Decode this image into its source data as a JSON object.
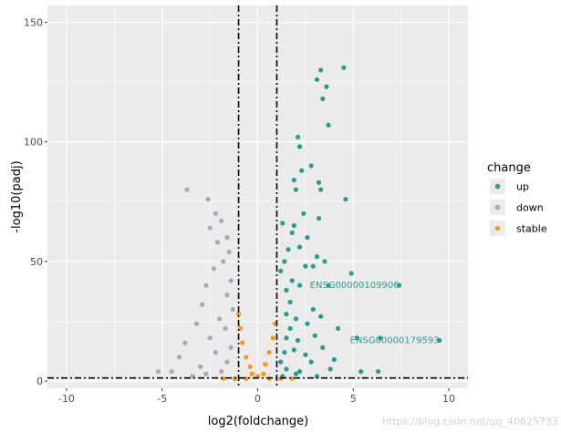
{
  "chart_data": {
    "type": "scatter",
    "title": "",
    "xlabel": "log2(foldchange)",
    "ylabel": "-log10(padj)",
    "xlim": [
      -11,
      11
    ],
    "ylim": [
      -3,
      157
    ],
    "x_ticks": [
      -10,
      -5,
      0,
      5,
      10
    ],
    "y_ticks": [
      0,
      50,
      100,
      150
    ],
    "grid": true,
    "thresholds": {
      "vlines": [
        -1,
        1
      ],
      "hline": 1.3
    },
    "legend": {
      "title": "change",
      "position": "right",
      "entries": [
        {
          "label": "up",
          "color": "#2A9D8F"
        },
        {
          "label": "down",
          "color": "#A4AABB"
        },
        {
          "label": "stable",
          "color": "#F59A23"
        }
      ]
    },
    "series": [
      {
        "name": "up",
        "color": "#2A9D8F",
        "points": [
          [
            4.5,
            131
          ],
          [
            3.3,
            130
          ],
          [
            3.1,
            126
          ],
          [
            3.6,
            123
          ],
          [
            3.4,
            118
          ],
          [
            3.7,
            107
          ],
          [
            2.1,
            102
          ],
          [
            2.2,
            98
          ],
          [
            2.8,
            90
          ],
          [
            2.3,
            88
          ],
          [
            1.9,
            84
          ],
          [
            3.2,
            83
          ],
          [
            2.0,
            80
          ],
          [
            3.3,
            80
          ],
          [
            4.6,
            76
          ],
          [
            2.4,
            70
          ],
          [
            1.3,
            66
          ],
          [
            1.9,
            65
          ],
          [
            3.2,
            68
          ],
          [
            1.8,
            62
          ],
          [
            2.6,
            60
          ],
          [
            2.2,
            56
          ],
          [
            3.1,
            52
          ],
          [
            1.6,
            55
          ],
          [
            1.4,
            50
          ],
          [
            3.5,
            50
          ],
          [
            1.2,
            46
          ],
          [
            2.5,
            48
          ],
          [
            4.9,
            45
          ],
          [
            2.9,
            48
          ],
          [
            1.8,
            42
          ],
          [
            1.5,
            38
          ],
          [
            2.2,
            40
          ],
          [
            3.7,
            40
          ],
          [
            7.4,
            40
          ],
          [
            1.7,
            33
          ],
          [
            2.9,
            30
          ],
          [
            1.5,
            28
          ],
          [
            2.0,
            26
          ],
          [
            3.3,
            27
          ],
          [
            1.7,
            22
          ],
          [
            2.6,
            24
          ],
          [
            4.2,
            22
          ],
          [
            1.5,
            18
          ],
          [
            2.1,
            17
          ],
          [
            3.0,
            19
          ],
          [
            5.2,
            18
          ],
          [
            6.4,
            18
          ],
          [
            9.5,
            17
          ],
          [
            1.4,
            12
          ],
          [
            1.9,
            13
          ],
          [
            2.5,
            11
          ],
          [
            3.4,
            14
          ],
          [
            1.2,
            8
          ],
          [
            2.8,
            8
          ],
          [
            4.0,
            9
          ],
          [
            1.5,
            5
          ],
          [
            2.2,
            4
          ],
          [
            3.8,
            5
          ],
          [
            5.4,
            4
          ],
          [
            6.3,
            4
          ],
          [
            1.3,
            2
          ],
          [
            2.0,
            3
          ],
          [
            3.1,
            2
          ]
        ]
      },
      {
        "name": "down",
        "color": "#A4AABB",
        "points": [
          [
            -3.7,
            80
          ],
          [
            -2.6,
            76
          ],
          [
            -2.2,
            70
          ],
          [
            -1.9,
            67
          ],
          [
            -2.5,
            64
          ],
          [
            -1.6,
            60
          ],
          [
            -2.1,
            58
          ],
          [
            -1.5,
            54
          ],
          [
            -1.8,
            50
          ],
          [
            -2.3,
            47
          ],
          [
            -1.4,
            42
          ],
          [
            -2.7,
            40
          ],
          [
            -1.6,
            36
          ],
          [
            -2.9,
            32
          ],
          [
            -1.3,
            30
          ],
          [
            -2.0,
            26
          ],
          [
            -3.2,
            24
          ],
          [
            -1.7,
            22
          ],
          [
            -2.5,
            18
          ],
          [
            -3.8,
            16
          ],
          [
            -1.4,
            14
          ],
          [
            -2.2,
            12
          ],
          [
            -4.1,
            10
          ],
          [
            -1.6,
            8
          ],
          [
            -3.0,
            6
          ],
          [
            -4.5,
            4
          ],
          [
            -1.9,
            4
          ],
          [
            -5.2,
            4
          ],
          [
            -2.7,
            3
          ],
          [
            -3.4,
            2
          ]
        ]
      },
      {
        "name": "stable",
        "color": "#F59A23",
        "points": [
          [
            -1.0,
            28
          ],
          [
            -0.9,
            22
          ],
          [
            -0.8,
            16
          ],
          [
            -0.6,
            10
          ],
          [
            -0.4,
            6
          ],
          [
            -0.3,
            3
          ],
          [
            0.0,
            2
          ],
          [
            0.3,
            3
          ],
          [
            0.4,
            7
          ],
          [
            0.6,
            12
          ],
          [
            0.8,
            18
          ],
          [
            0.9,
            24
          ],
          [
            -1.8,
            1
          ],
          [
            -1.2,
            1
          ],
          [
            -0.6,
            1
          ],
          [
            0.6,
            1
          ],
          [
            1.2,
            1
          ],
          [
            1.8,
            1
          ]
        ]
      }
    ],
    "annotations": [
      {
        "label": "ENSG00000109906",
        "x": 7.4,
        "y": 40,
        "color": "#2A9D8F"
      },
      {
        "label": "ENSG00000179593",
        "x": 9.5,
        "y": 17,
        "color": "#2A9D8F"
      }
    ]
  },
  "watermark": "https://blog.csdn.net/qq_40625733"
}
